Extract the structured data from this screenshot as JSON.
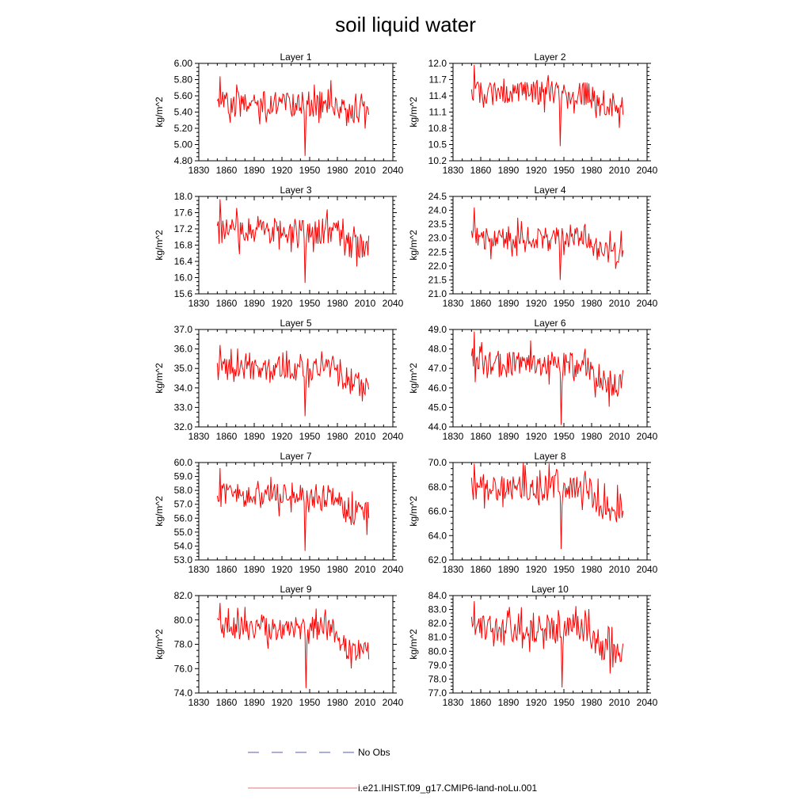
{
  "figure": {
    "title": "soil liquid water"
  },
  "legend": {
    "items": [
      {
        "label": "No Obs",
        "color": "#5a5ab4",
        "dashed": true
      },
      {
        "label": "i.e21.IHIST.f09_g17.CMIP6-land-noLu.001",
        "color": "#e8707a",
        "dashed": false
      }
    ]
  },
  "chart_data": [
    {
      "type": "line",
      "title": "Layer 1",
      "ylabel": "kg/m^2",
      "xlim": [
        1830,
        2040
      ],
      "ylim": [
        4.8,
        6.0
      ],
      "xticks": [
        "1830",
        "1860",
        "1890",
        "1920",
        "1950",
        "1980",
        "2010",
        "2040"
      ],
      "yticks": [
        "4.80",
        "5.00",
        "5.20",
        "5.40",
        "5.60",
        "5.80",
        "6.00"
      ],
      "color": "#ff0000",
      "x_start": 1850,
      "x_end": 2014,
      "base": 5.5,
      "amp": 0.16,
      "trend_late": -0.12,
      "dip": {
        "x": 1945,
        "y": 4.86
      },
      "max_peak": 5.84
    },
    {
      "type": "line",
      "title": "Layer 2",
      "ylabel": "kg/m^2",
      "xlim": [
        1830,
        2040
      ],
      "ylim": [
        10.2,
        12.0
      ],
      "xticks": [
        "1830",
        "1860",
        "1890",
        "1920",
        "1950",
        "1980",
        "2010",
        "2040"
      ],
      "yticks": [
        "10.2",
        "10.5",
        "10.8",
        "11.1",
        "11.4",
        "11.7",
        "12.0"
      ],
      "color": "#ff0000",
      "x_start": 1850,
      "x_end": 2014,
      "base": 11.45,
      "amp": 0.22,
      "trend_late": -0.25,
      "dip": {
        "x": 1946,
        "y": 10.47
      },
      "max_peak": 11.97
    },
    {
      "type": "line",
      "title": "Layer 3",
      "ylabel": "kg/m^2",
      "xlim": [
        1830,
        2040
      ],
      "ylim": [
        15.6,
        18.0
      ],
      "xticks": [
        "1830",
        "1860",
        "1890",
        "1920",
        "1950",
        "1980",
        "2010",
        "2040"
      ],
      "yticks": [
        "15.6",
        "16.0",
        "16.4",
        "16.8",
        "17.2",
        "17.6",
        "18.0"
      ],
      "color": "#ff0000",
      "x_start": 1850,
      "x_end": 2014,
      "base": 17.15,
      "amp": 0.32,
      "trend_late": -0.35,
      "dip": {
        "x": 1945,
        "y": 15.87
      },
      "max_peak": 17.93
    },
    {
      "type": "line",
      "title": "Layer 4",
      "ylabel": "kg/m^2",
      "xlim": [
        1830,
        2040
      ],
      "ylim": [
        21.0,
        24.5
      ],
      "xticks": [
        "1830",
        "1860",
        "1890",
        "1920",
        "1950",
        "1980",
        "2010",
        "2040"
      ],
      "yticks": [
        "21.0",
        "21.5",
        "22.0",
        "22.5",
        "23.0",
        "23.5",
        "24.0",
        "24.5"
      ],
      "color": "#ff0000",
      "x_start": 1850,
      "x_end": 2014,
      "base": 23.05,
      "amp": 0.45,
      "trend_late": -0.55,
      "dip": {
        "x": 1946,
        "y": 21.5
      },
      "max_peak": 24.1
    },
    {
      "type": "line",
      "title": "Layer 5",
      "ylabel": "kg/m^2",
      "xlim": [
        1830,
        2040
      ],
      "ylim": [
        32.0,
        37.0
      ],
      "xticks": [
        "1830",
        "1860",
        "1890",
        "1920",
        "1950",
        "1980",
        "2010",
        "2040"
      ],
      "yticks": [
        "32.0",
        "33.0",
        "34.0",
        "35.0",
        "36.0",
        "37.0"
      ],
      "color": "#ff0000",
      "x_start": 1850,
      "x_end": 2014,
      "base": 34.95,
      "amp": 0.6,
      "trend_late": -0.75,
      "dip": {
        "x": 1945,
        "y": 32.55
      },
      "max_peak": 36.2
    },
    {
      "type": "line",
      "title": "Layer 6",
      "ylabel": "kg/m^2",
      "xlim": [
        1830,
        2040
      ],
      "ylim": [
        44.0,
        49.0
      ],
      "xticks": [
        "1830",
        "1860",
        "1890",
        "1920",
        "1950",
        "1980",
        "2010",
        "2040"
      ],
      "yticks": [
        "44.0",
        "45.0",
        "46.0",
        "47.0",
        "48.0",
        "49.0"
      ],
      "color": "#ff0000",
      "x_start": 1850,
      "x_end": 2014,
      "base": 47.2,
      "amp": 0.7,
      "trend_late": -0.95,
      "dip": {
        "x": 1947,
        "y": 44.1
      },
      "max_peak": 48.9
    },
    {
      "type": "line",
      "title": "Layer 7",
      "ylabel": "kg/m^2",
      "xlim": [
        1830,
        2040
      ],
      "ylim": [
        53.0,
        60.0
      ],
      "xticks": [
        "1830",
        "1860",
        "1890",
        "1920",
        "1950",
        "1980",
        "2010",
        "2040"
      ],
      "yticks": [
        "53.0",
        "54.0",
        "55.0",
        "56.0",
        "57.0",
        "58.0",
        "59.0",
        "60.0"
      ],
      "color": "#ff0000",
      "x_start": 1850,
      "x_end": 2014,
      "base": 57.7,
      "amp": 0.9,
      "trend_late": -1.3,
      "dip": {
        "x": 1945,
        "y": 53.65
      },
      "max_peak": 59.6
    },
    {
      "type": "line",
      "title": "Layer 8",
      "ylabel": "kg/m^2",
      "xlim": [
        1830,
        2040
      ],
      "ylim": [
        62.0,
        70.0
      ],
      "xticks": [
        "1830",
        "1860",
        "1890",
        "1920",
        "1950",
        "1980",
        "2010",
        "2040"
      ],
      "yticks": [
        "62.0",
        "64.0",
        "66.0",
        "68.0",
        "70.0"
      ],
      "color": "#ff0000",
      "x_start": 1850,
      "x_end": 2014,
      "base": 67.9,
      "amp": 1.1,
      "trend_late": -1.6,
      "dip": {
        "x": 1947,
        "y": 62.9
      },
      "max_peak": 69.9
    },
    {
      "type": "line",
      "title": "Layer 9",
      "ylabel": "kg/m^2",
      "xlim": [
        1830,
        2040
      ],
      "ylim": [
        74.0,
        82.0
      ],
      "xticks": [
        "1830",
        "1860",
        "1890",
        "1920",
        "1950",
        "1980",
        "2010",
        "2040"
      ],
      "yticks": [
        "74.0",
        "76.0",
        "78.0",
        "80.0",
        "82.0"
      ],
      "color": "#ff0000",
      "x_start": 1850,
      "x_end": 2014,
      "base": 79.3,
      "amp": 1.0,
      "trend_late": -1.7,
      "dip": {
        "x": 1946,
        "y": 74.4
      },
      "max_peak": 81.4
    },
    {
      "type": "line",
      "title": "Layer 10",
      "ylabel": "kg/m^2",
      "xlim": [
        1830,
        2040
      ],
      "ylim": [
        77.0,
        84.0
      ],
      "xticks": [
        "1830",
        "1860",
        "1890",
        "1920",
        "1950",
        "1980",
        "2010",
        "2040"
      ],
      "yticks": [
        "77.0",
        "78.0",
        "79.0",
        "80.0",
        "81.0",
        "82.0",
        "83.0",
        "84.0"
      ],
      "color": "#ff0000",
      "x_start": 1850,
      "x_end": 2014,
      "base": 81.6,
      "amp": 0.95,
      "trend_late": -1.6,
      "dip": {
        "x": 1948,
        "y": 77.4
      },
      "max_peak": 83.6
    }
  ]
}
